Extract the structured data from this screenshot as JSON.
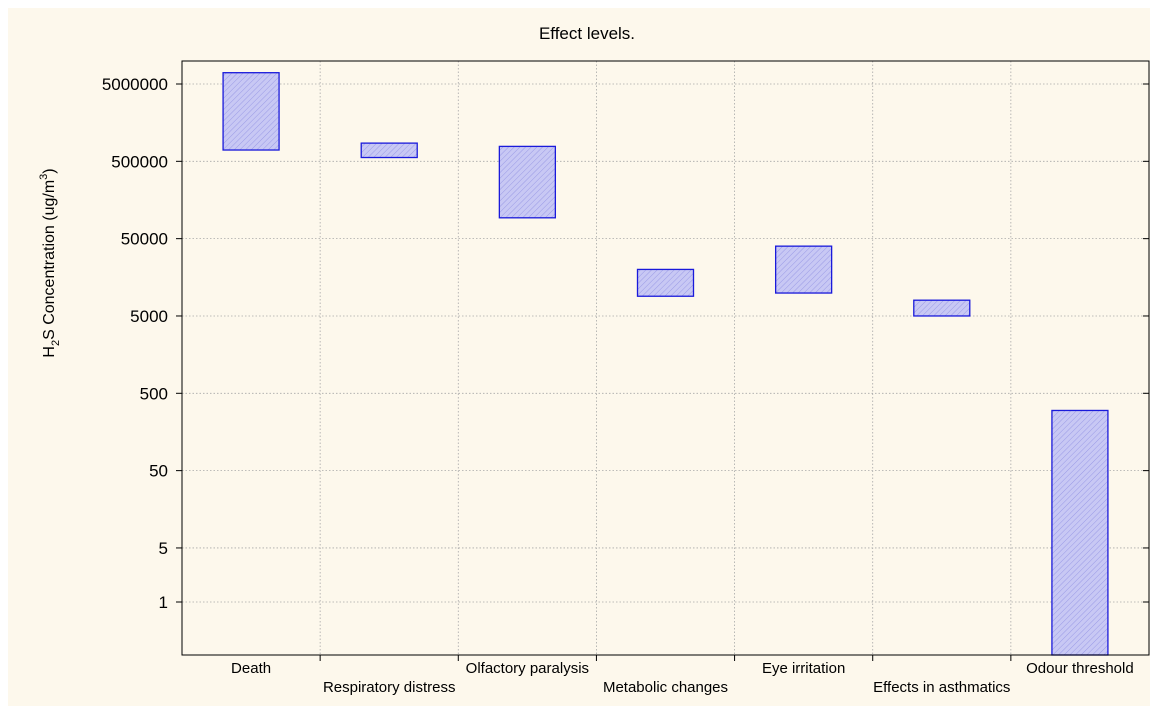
{
  "chart_data": {
    "type": "floating-bar",
    "title": "Effect levels.",
    "ylabel_parts": {
      "h": "H",
      "sub": "2",
      "mid": "S Concentration (ug/m",
      "sup": "3",
      "end": ")"
    },
    "ytick_labels": [
      "5000000",
      "500000",
      "50000",
      "5000",
      "500",
      "50",
      "5",
      "1"
    ],
    "ytick_values": [
      5000000,
      500000,
      50000,
      5000,
      500,
      50,
      5,
      1
    ],
    "y_scale": "log",
    "y_range": [
      0.17,
      7000000
    ],
    "grid": true,
    "bar_color": "#c8c8f4",
    "bar_edge": "#1a1adb",
    "categories": [
      "Death",
      "Respiratory distress",
      "Olfactory paralysis",
      "Metabolic changes",
      "Eye irritation",
      "Effects in asthmatics",
      "Odour threshold"
    ],
    "bars": [
      {
        "category": "Death",
        "low": 700000,
        "high": 7000000
      },
      {
        "category": "Respiratory distress",
        "low": 560000,
        "high": 860000
      },
      {
        "category": "Olfactory paralysis",
        "low": 93000,
        "high": 780000
      },
      {
        "category": "Metabolic changes",
        "low": 9000,
        "high": 20000
      },
      {
        "category": "Eye irritation",
        "low": 9900,
        "high": 40000
      },
      {
        "category": "Effects in asthmatics",
        "low": 5000,
        "high": 8000
      },
      {
        "category": "Odour threshold",
        "low": 0.17,
        "high": 300
      }
    ]
  }
}
